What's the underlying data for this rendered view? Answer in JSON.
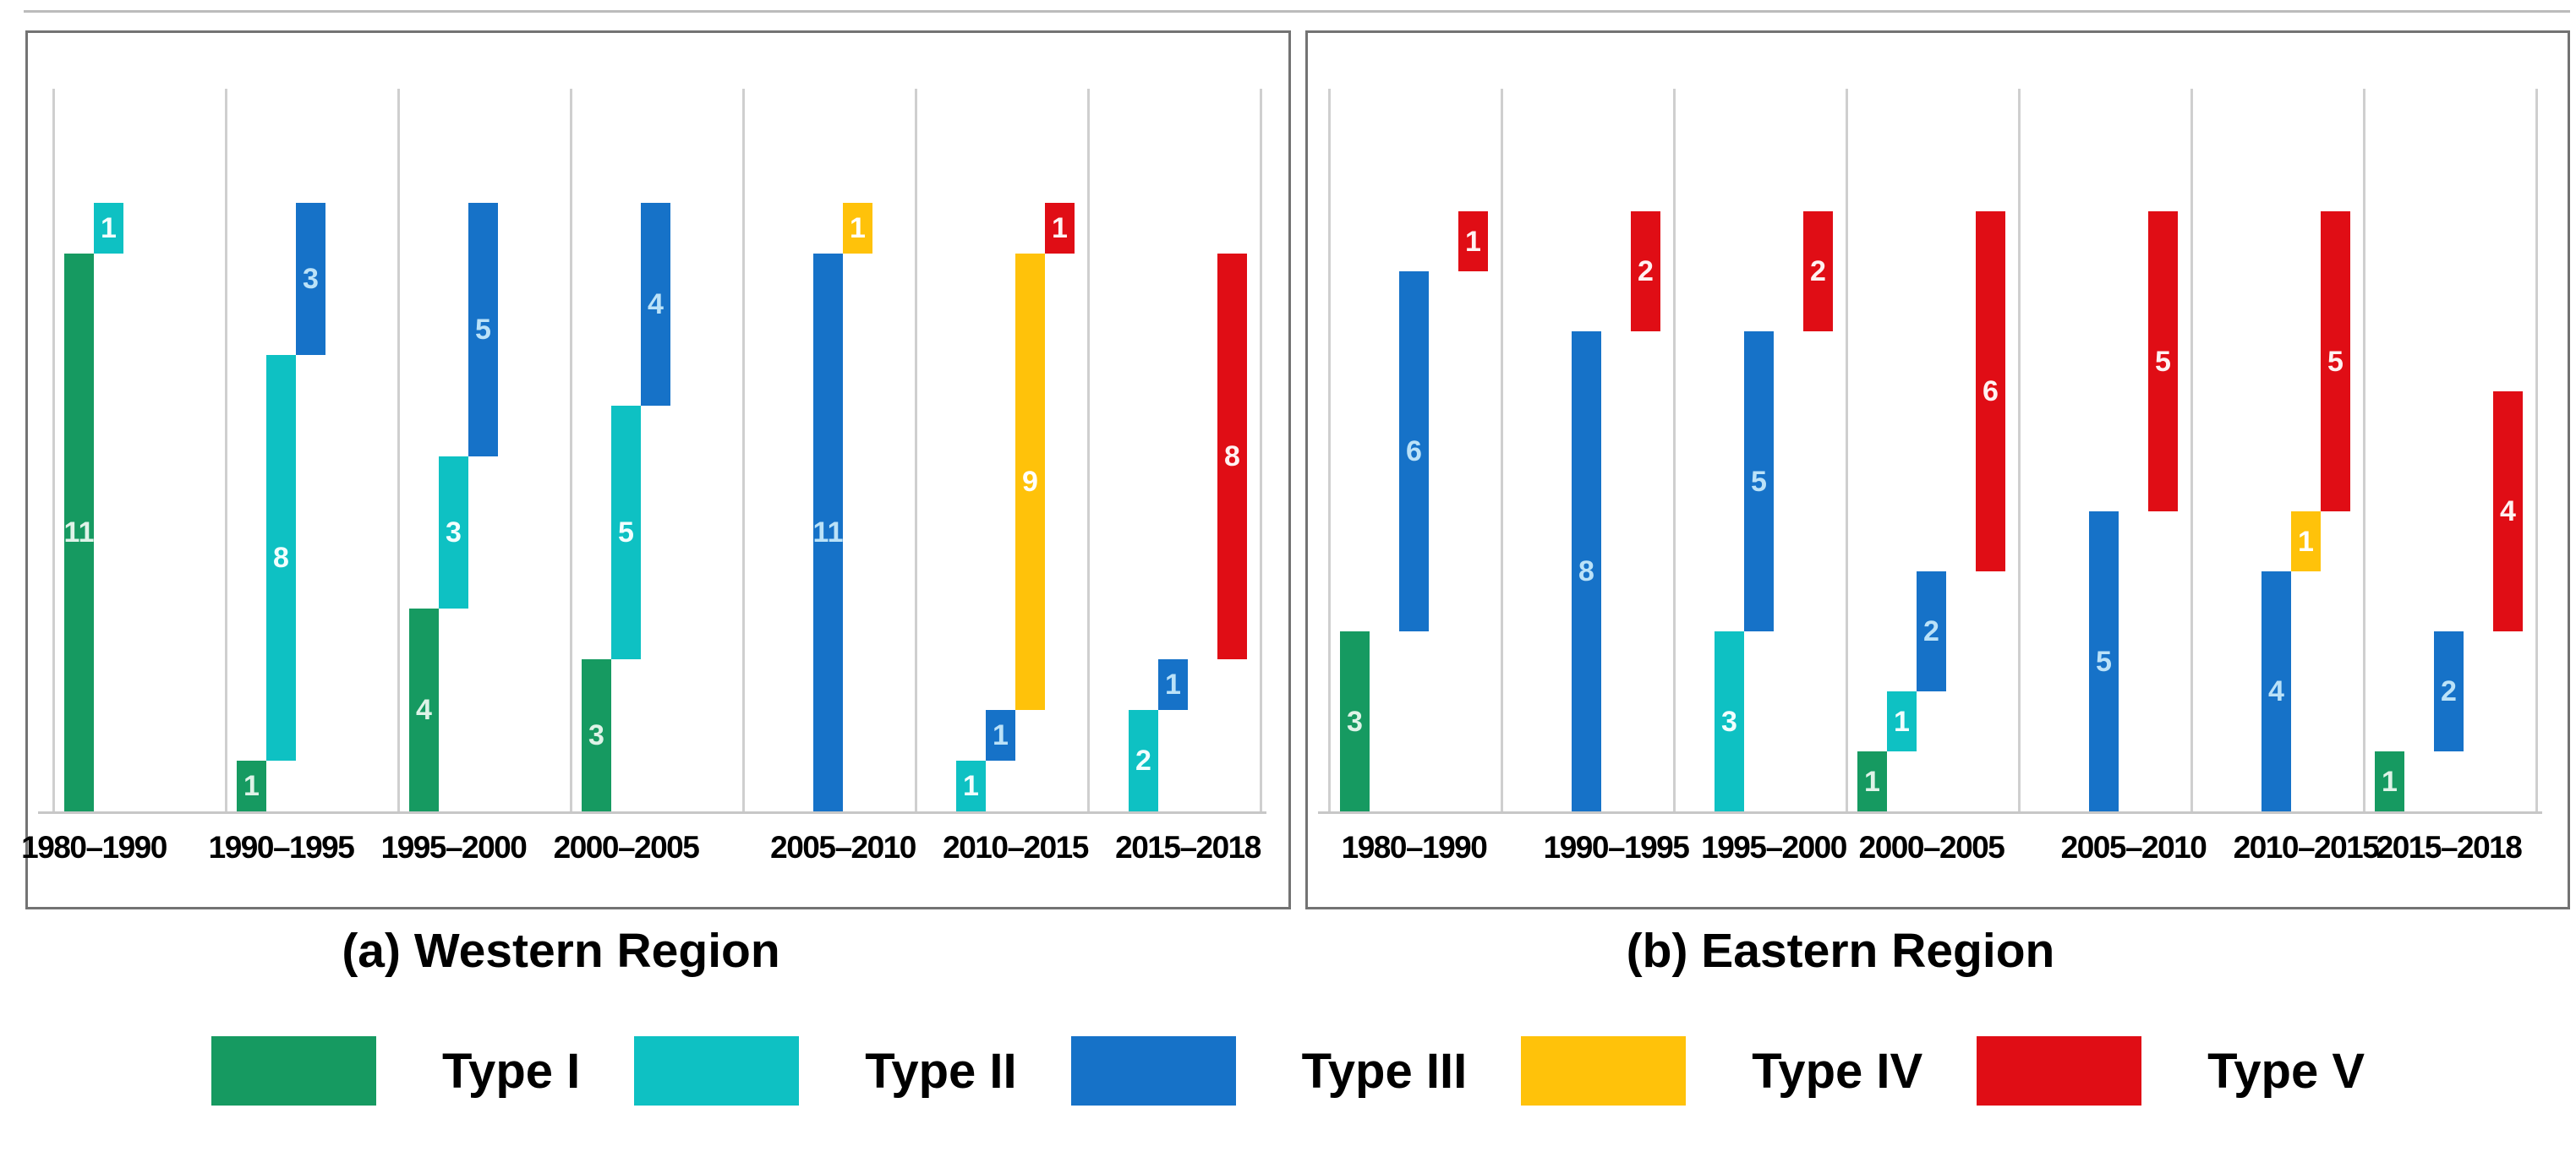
{
  "figure_title": "",
  "panels": [
    {
      "caption": "(a) Western Region"
    },
    {
      "caption": "(b) Eastern Region"
    }
  ],
  "legend": {
    "items": [
      {
        "label": "Type I",
        "color": "#169A61",
        "value_text_color": "#DFF3E8"
      },
      {
        "label": "Type II",
        "color": "#0EC1C3",
        "value_text_color": "#F2FFFE"
      },
      {
        "label": "Type III",
        "color": "#1672C8",
        "value_text_color": "#BBE2F8"
      },
      {
        "label": "Type IV",
        "color": "#FFC20A",
        "value_text_color": "#FFFFFF"
      },
      {
        "label": "Type V",
        "color": "#E00D15",
        "value_text_color": "#FFF2F2"
      }
    ]
  },
  "chart_data": [
    {
      "type": "bar",
      "subtype": "stacked-waterfall",
      "title": "(a) Western Region",
      "xlabel": "",
      "ylabel": "",
      "ylim": [
        0,
        12
      ],
      "grid": "vertical-gridlines-per-category",
      "legend_position": "bottom",
      "categories": [
        "1980–1990",
        "1990–1995",
        "1995–2000",
        "2000–2005",
        "2005–2010",
        "2010–2015",
        "2015–2018"
      ],
      "series": [
        {
          "name": "Type I",
          "values": [
            11,
            1,
            4,
            3,
            0,
            0,
            0
          ]
        },
        {
          "name": "Type II",
          "values": [
            1,
            8,
            3,
            5,
            0,
            1,
            2
          ]
        },
        {
          "name": "Type III",
          "values": [
            0,
            3,
            5,
            4,
            11,
            1,
            1
          ]
        },
        {
          "name": "Type IV",
          "values": [
            0,
            0,
            0,
            0,
            1,
            9,
            0
          ]
        },
        {
          "name": "Type V",
          "values": [
            0,
            0,
            0,
            0,
            0,
            1,
            8
          ]
        }
      ],
      "column_totals": [
        12,
        12,
        12,
        12,
        12,
        12,
        11
      ]
    },
    {
      "type": "bar",
      "subtype": "stacked-waterfall",
      "title": "(b) Eastern Region",
      "xlabel": "",
      "ylabel": "",
      "ylim": [
        0,
        10
      ],
      "grid": "vertical-gridlines-per-category",
      "legend_position": "bottom",
      "categories": [
        "1980–1990",
        "1990–1995",
        "1995–2000",
        "2000–2005",
        "2005–2010",
        "2010–2015",
        "2015–2018"
      ],
      "series": [
        {
          "name": "Type I",
          "values": [
            3,
            0,
            0,
            1,
            0,
            0,
            1
          ]
        },
        {
          "name": "Type II",
          "values": [
            0,
            0,
            3,
            1,
            0,
            0,
            0
          ]
        },
        {
          "name": "Type III",
          "values": [
            6,
            8,
            5,
            2,
            5,
            4,
            2
          ]
        },
        {
          "name": "Type IV",
          "values": [
            0,
            0,
            0,
            0,
            0,
            1,
            0
          ]
        },
        {
          "name": "Type V",
          "values": [
            1,
            2,
            2,
            6,
            5,
            5,
            4
          ]
        }
      ],
      "column_totals": [
        10,
        10,
        10,
        10,
        10,
        10,
        7
      ]
    }
  ]
}
